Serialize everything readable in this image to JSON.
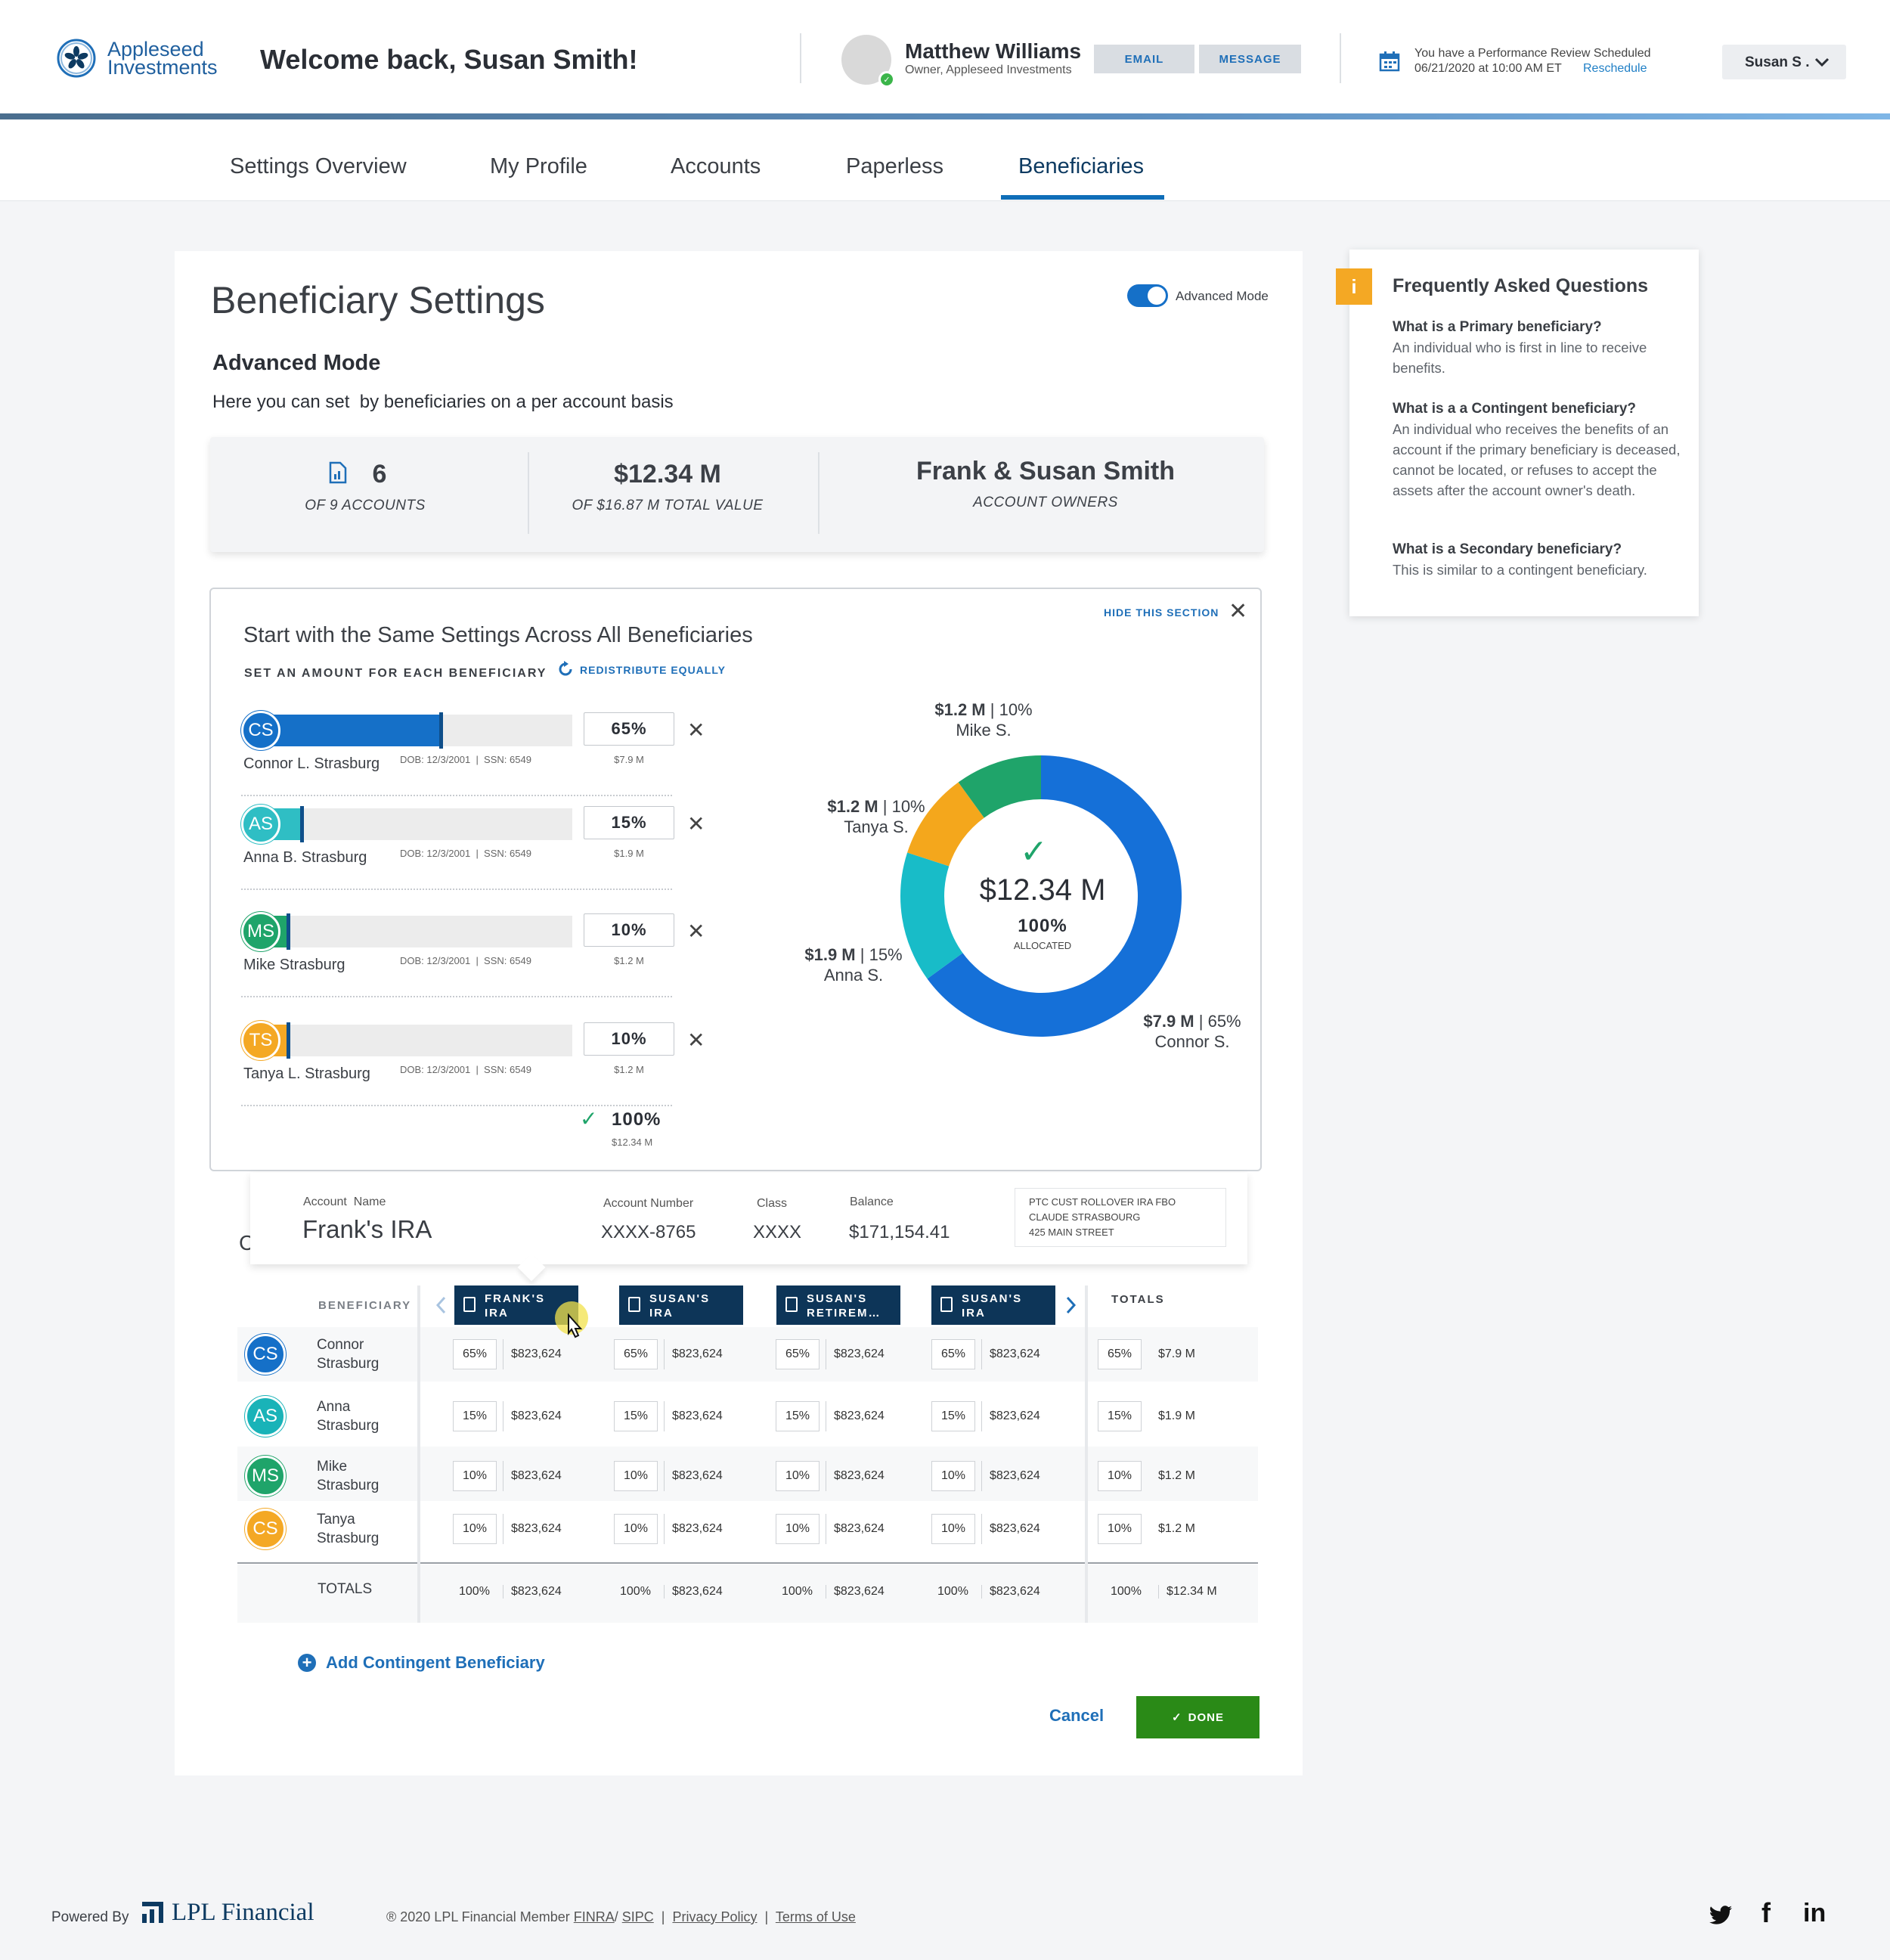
{
  "header": {
    "logo_line1": "Appleseed",
    "logo_line2": "Investments",
    "welcome": "Welcome back, Susan Smith!",
    "advisor_name": "Matthew Williams",
    "advisor_title": "Owner, Appleseed Investments",
    "email_label": "EMAIL",
    "message_label": "MESSAGE",
    "review_line1": "You have a Performance Review Scheduled",
    "review_line2": "06/21/2020 at 10:00 AM ET",
    "reschedule": "Reschedule",
    "user_menu": "Susan S ."
  },
  "nav": {
    "tabs": [
      "Settings Overview",
      "My Profile",
      "Accounts",
      "Paperless",
      "Beneficiaries"
    ],
    "active": "Beneficiaries"
  },
  "page": {
    "title": "Beneficiary Settings",
    "toggle_label": "Advanced Mode",
    "subtitle": "Advanced Mode",
    "description": "Here you can set  by beneficiaries on a per account basis"
  },
  "stats": {
    "accounts_value": "6",
    "accounts_label": "OF 9 ACCOUNTS",
    "total_value": "$12.34 M",
    "total_label": "OF $16.87 M TOTAL VALUE",
    "owners_value": "Frank & Susan Smith",
    "owners_label": "ACCOUNT OWNERS"
  },
  "section": {
    "hide_label": "HIDE THIS SECTION",
    "title": "Start with the Same Settings Across All Beneficiaries",
    "set_amount_label": "SET AN AMOUNT FOR EACH BENEFICIARY",
    "redistribute_label": "REDISTRIBUTE EQUALLY",
    "beneficiaries": [
      {
        "initials": "CS",
        "name": "Connor L. Strasburg",
        "dob": "DOB: 12/3/2001  |  SSN: 6549",
        "pct": "65%",
        "fraction": 0.65,
        "amount": "$7.9 M",
        "color": "#1570c8"
      },
      {
        "initials": "AS",
        "name": "Anna B. Strasburg",
        "dob": "DOB: 12/3/2001  |  SSN: 6549",
        "pct": "15%",
        "fraction": 0.15,
        "amount": "$1.9 M",
        "color": "#2fbec4"
      },
      {
        "initials": "MS",
        "name": "Mike Strasburg",
        "dob": "DOB: 12/3/2001  |  SSN: 6549",
        "pct": "10%",
        "fraction": 0.1,
        "amount": "$1.2 M",
        "color": "#1fa46a"
      },
      {
        "initials": "TS",
        "name": "Tanya L. Strasburg",
        "dob": "DOB: 12/3/2001  |  SSN: 6549",
        "pct": "10%",
        "fraction": 0.1,
        "amount": "$1.2 M",
        "color": "#f4a824"
      }
    ],
    "total_pct": "100%",
    "total_amount": "$12.34 M"
  },
  "chart_data": {
    "type": "pie",
    "center_value": "$12.34 M",
    "center_pct": "100%",
    "center_label": "ALLOCATED",
    "slices": [
      {
        "name": "Connor S.",
        "amount": "$7.9 M",
        "pct_label": "65%",
        "value": 65,
        "color": "#1570d8"
      },
      {
        "name": "Anna S.",
        "amount": "$1.9 M",
        "pct_label": "15%",
        "value": 15,
        "color": "#18bcc8"
      },
      {
        "name": "Tanya S.",
        "amount": "$1.2 M",
        "pct_label": "10%",
        "value": 10,
        "color": "#f4a71c"
      },
      {
        "name": "Mike S.",
        "amount": "$1.2 M",
        "pct_label": "10%",
        "value": 10,
        "color": "#1fa46a"
      }
    ]
  },
  "account_card": {
    "name_label": "Account  Name",
    "name": "Frank's IRA",
    "number_label": "Account Number",
    "number": "XXXX-8765",
    "class_label": "Class",
    "class": "XXXX",
    "balance_label": "Balance",
    "balance": "$171,154.41",
    "address": [
      "PTC CUST ROLLOVER IRA FBO",
      "CLAUDE STRASBOURG",
      "425 MAIN STREET"
    ],
    "partial_letter": "C"
  },
  "table": {
    "beneficiary_header": "BENEFICIARY",
    "totals_header": "TOTALS",
    "accounts": [
      {
        "line1": "FRANK'S",
        "line2": "IRA"
      },
      {
        "line1": "SUSAN'S",
        "line2": "IRA"
      },
      {
        "line1": "SUSAN'S",
        "line2": "RETIREM…"
      },
      {
        "line1": "SUSAN'S",
        "line2": "IRA"
      }
    ],
    "rows": [
      {
        "initials": "CS",
        "first": "Connor",
        "last": "Strasburg",
        "color": "#1570c8",
        "pct": "65%",
        "amount": "$823,624",
        "total_pct": "65%",
        "total_amount": "$7.9 M"
      },
      {
        "initials": "AS",
        "first": "Anna",
        "last": "Strasburg",
        "color": "#19b3b8",
        "pct": "15%",
        "amount": "$823,624",
        "total_pct": "15%",
        "total_amount": "$1.9 M"
      },
      {
        "initials": "MS",
        "first": "Mike",
        "last": "Strasburg",
        "color": "#1fa46a",
        "pct": "10%",
        "amount": "$823,624",
        "total_pct": "10%",
        "total_amount": "$1.2 M"
      },
      {
        "initials": "CS",
        "first": "Tanya",
        "last": "Strasburg",
        "color": "#f4a824",
        "pct": "10%",
        "amount": "$823,624",
        "total_pct": "10%",
        "total_amount": "$1.2 M"
      }
    ],
    "totals_row": {
      "label": "TOTALS",
      "pct": "100%",
      "amount": "$823,624",
      "total_pct": "100%",
      "total_amount": "$12.34 M"
    }
  },
  "actions": {
    "add_contingent": "Add Contingent Beneficiary",
    "cancel": "Cancel",
    "done": "DONE"
  },
  "faq": {
    "title": "Frequently Asked Questions",
    "items": [
      {
        "q": "What is a Primary beneficiary?",
        "a": "An individual who is first in line to receive benefits."
      },
      {
        "q": "What is a a Contingent beneficiary?",
        "a": "An individual who receives the benefits of an account if the primary beneficiary is deceased, cannot be located, or refuses to accept the assets after the account owner's death."
      },
      {
        "q": "What is a Secondary beneficiary?",
        "a": "This is similar to a contingent beneficiary."
      }
    ]
  },
  "footer": {
    "powered_by": "Powered By",
    "brand": "LPL Financial",
    "copyright": "® 2020 LPL Financial Member",
    "finra": "FINRA",
    "sipc": "SIPC",
    "privacy": "Privacy Policy",
    "terms": "Terms of Use"
  }
}
